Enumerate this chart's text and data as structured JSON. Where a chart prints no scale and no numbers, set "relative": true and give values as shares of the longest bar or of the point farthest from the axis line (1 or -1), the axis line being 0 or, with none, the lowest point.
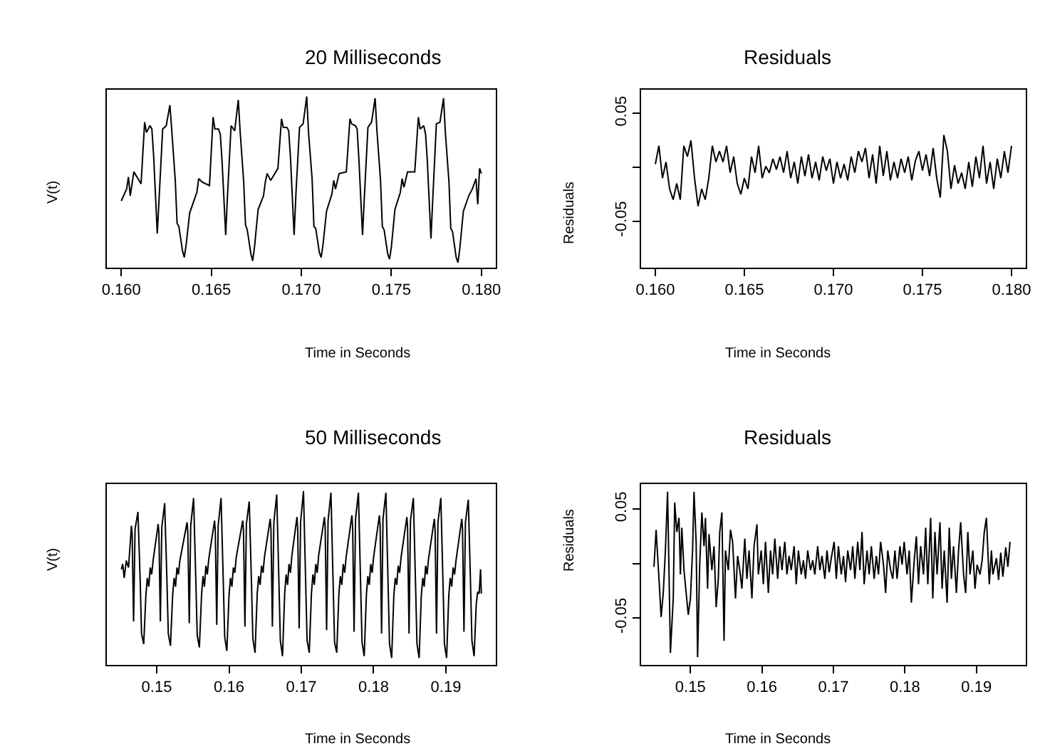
{
  "chart_data": [
    {
      "type": "line",
      "title": "20 Milliseconds",
      "xlabel": "Time in Seconds",
      "ylabel": "V(t)",
      "relative": true,
      "tick_labels": "x",
      "color": "#000000",
      "xlim": [
        0.1592,
        0.1808
      ],
      "xticks": [
        {
          "value": 0.16,
          "label": "0.160"
        },
        {
          "value": 0.165,
          "label": "0.165"
        },
        {
          "value": 0.17,
          "label": "0.170"
        },
        {
          "value": 0.175,
          "label": "0.175"
        },
        {
          "value": 0.18,
          "label": "0.180"
        }
      ],
      "x": [
        0.16,
        0.1603,
        0.1604,
        0.1605,
        0.1607,
        0.1611,
        0.1613,
        0.1614,
        0.1616,
        0.1617,
        0.1618,
        0.162,
        0.1621,
        0.1623,
        0.1625,
        0.1627,
        0.1628,
        0.163,
        0.1631,
        0.1632,
        0.1634,
        0.1635,
        0.1636,
        0.1638,
        0.1641,
        0.1642,
        0.1643,
        0.1645,
        0.1649,
        0.1651,
        0.1652,
        0.1654,
        0.1655,
        0.1656,
        0.1658,
        0.1659,
        0.1661,
        0.1663,
        0.1665,
        0.1666,
        0.1668,
        0.1669,
        0.167,
        0.1672,
        0.1673,
        0.1674,
        0.1676,
        0.1679,
        0.168,
        0.1681,
        0.1683,
        0.1687,
        0.1689,
        0.169,
        0.1692,
        0.1693,
        0.1694,
        0.1696,
        0.1697,
        0.1699,
        0.1701,
        0.1703,
        0.1704,
        0.1706,
        0.1707,
        0.1708,
        0.171,
        0.1711,
        0.1712,
        0.1714,
        0.1717,
        0.1718,
        0.1719,
        0.1721,
        0.1725,
        0.1727,
        0.1728,
        0.173,
        0.1731,
        0.1732,
        0.1734,
        0.1735,
        0.1737,
        0.1739,
        0.1741,
        0.1742,
        0.1744,
        0.1745,
        0.1746,
        0.1748,
        0.1749,
        0.175,
        0.1752,
        0.1755,
        0.1756,
        0.1757,
        0.1759,
        0.1763,
        0.1765,
        0.1766,
        0.1768,
        0.1769,
        0.177,
        0.1772,
        0.1773,
        0.1775,
        0.1777,
        0.1779,
        0.178,
        0.1782,
        0.1783,
        0.1784,
        0.1786,
        0.1787,
        0.1788,
        0.179,
        0.1793,
        0.1795,
        0.1797,
        0.1798,
        0.1799,
        0.18
      ],
      "values": [
        0.39,
        0.46,
        0.53,
        0.42,
        0.56,
        0.49,
        0.85,
        0.79,
        0.83,
        0.81,
        0.65,
        0.2,
        0.4,
        0.81,
        0.83,
        0.95,
        0.81,
        0.51,
        0.26,
        0.24,
        0.1,
        0.06,
        0.13,
        0.32,
        0.41,
        0.44,
        0.52,
        0.5,
        0.48,
        0.88,
        0.81,
        0.81,
        0.78,
        0.62,
        0.19,
        0.42,
        0.83,
        0.8,
        0.98,
        0.8,
        0.5,
        0.25,
        0.22,
        0.08,
        0.04,
        0.12,
        0.34,
        0.42,
        0.5,
        0.55,
        0.51,
        0.58,
        0.87,
        0.82,
        0.82,
        0.8,
        0.64,
        0.19,
        0.43,
        0.82,
        0.84,
        1.0,
        0.79,
        0.52,
        0.24,
        0.23,
        0.09,
        0.06,
        0.13,
        0.33,
        0.43,
        0.51,
        0.46,
        0.55,
        0.56,
        0.87,
        0.84,
        0.83,
        0.81,
        0.63,
        0.19,
        0.41,
        0.82,
        0.85,
        0.99,
        0.8,
        0.51,
        0.24,
        0.22,
        0.08,
        0.05,
        0.12,
        0.34,
        0.44,
        0.52,
        0.47,
        0.56,
        0.56,
        0.88,
        0.81,
        0.83,
        0.78,
        0.62,
        0.17,
        0.4,
        0.84,
        0.85,
        0.99,
        0.79,
        0.5,
        0.23,
        0.21,
        0.06,
        0.03,
        0.11,
        0.33,
        0.42,
        0.46,
        0.52,
        0.37,
        0.58,
        0.55
      ]
    },
    {
      "type": "line",
      "title": "Residuals",
      "xlabel": "Time in Seconds",
      "ylabel": "Residuals",
      "color": "#000000",
      "xlim": [
        0.1592,
        0.1808
      ],
      "xticks": [
        {
          "value": 0.16,
          "label": "0.160"
        },
        {
          "value": 0.165,
          "label": "0.165"
        },
        {
          "value": 0.17,
          "label": "0.170"
        },
        {
          "value": 0.175,
          "label": "0.175"
        },
        {
          "value": 0.18,
          "label": "0.180"
        }
      ],
      "ylim": [
        -0.093,
        0.072
      ],
      "yticks": [
        {
          "value": -0.05,
          "label": "-0.05"
        },
        {
          "value": 0,
          "label": null
        },
        {
          "value": 0.05,
          "label": "0.05"
        }
      ],
      "x": [
        0.16,
        0.1602,
        0.1604,
        0.1606,
        0.1608,
        0.161,
        0.1612,
        0.1614,
        0.1616,
        0.1618,
        0.162,
        0.1622,
        0.1624,
        0.1626,
        0.1628,
        0.163,
        0.1632,
        0.1634,
        0.1636,
        0.1638,
        0.164,
        0.1642,
        0.1644,
        0.1646,
        0.1648,
        0.165,
        0.1652,
        0.1654,
        0.1656,
        0.1658,
        0.166,
        0.1662,
        0.1664,
        0.1666,
        0.1668,
        0.167,
        0.1672,
        0.1674,
        0.1676,
        0.1678,
        0.168,
        0.1682,
        0.1684,
        0.1686,
        0.1688,
        0.169,
        0.1692,
        0.1694,
        0.1696,
        0.1698,
        0.17,
        0.1702,
        0.1704,
        0.1706,
        0.1708,
        0.171,
        0.1712,
        0.1714,
        0.1716,
        0.1718,
        0.172,
        0.1722,
        0.1724,
        0.1726,
        0.1728,
        0.173,
        0.1732,
        0.1734,
        0.1736,
        0.1738,
        0.174,
        0.1742,
        0.1744,
        0.1746,
        0.1748,
        0.175,
        0.1752,
        0.1754,
        0.1756,
        0.1758,
        0.176,
        0.1762,
        0.1764,
        0.1766,
        0.1768,
        0.177,
        0.1772,
        0.1774,
        0.1776,
        0.1778,
        0.178,
        0.1782,
        0.1784,
        0.1786,
        0.1788,
        0.179,
        0.1792,
        0.1794,
        0.1796,
        0.1798,
        0.18
      ],
      "values": [
        0.003,
        0.02,
        -0.01,
        0.005,
        -0.02,
        -0.03,
        -0.015,
        -0.03,
        0.02,
        0.01,
        0.025,
        -0.01,
        -0.036,
        -0.02,
        -0.03,
        -0.01,
        0.02,
        0.005,
        0.015,
        0.005,
        0.02,
        -0.005,
        0.01,
        -0.015,
        -0.025,
        -0.01,
        -0.02,
        0.01,
        -0.005,
        0.02,
        -0.01,
        0.001,
        -0.005,
        0.008,
        -0.002,
        0.01,
        -0.005,
        0.015,
        -0.01,
        0.005,
        -0.015,
        0.01,
        -0.008,
        0.012,
        -0.01,
        0.005,
        -0.012,
        0.01,
        -0.003,
        0.008,
        -0.015,
        0.005,
        -0.01,
        0.003,
        -0.012,
        0.01,
        -0.005,
        0.015,
        0.005,
        0.018,
        -0.01,
        0.012,
        -0.015,
        0.02,
        -0.008,
        0.015,
        -0.012,
        0.005,
        -0.01,
        0.008,
        -0.005,
        0.01,
        -0.012,
        0.006,
        0.015,
        -0.003,
        0.012,
        -0.008,
        0.018,
        -0.01,
        -0.028,
        0.03,
        0.015,
        -0.02,
        0.002,
        -0.015,
        -0.005,
        -0.02,
        0.005,
        -0.018,
        0.01,
        -0.01,
        0.02,
        -0.015,
        0.005,
        -0.02,
        0.008,
        -0.01,
        0.015,
        -0.005,
        0.02
      ]
    },
    {
      "type": "line",
      "title": "50 Milliseconds",
      "xlabel": "Time in Seconds",
      "ylabel": "V(t)",
      "relative": true,
      "tick_labels": "x",
      "color": "#000000",
      "xlim": [
        0.1431,
        0.1969
      ],
      "xticks": [
        0.15,
        0.16,
        0.17,
        0.18,
        0.19
      ],
      "x": [
        0.1451,
        0.1453,
        0.1455,
        0.1458,
        0.1461,
        0.1465,
        0.1466,
        0.1468,
        0.147,
        0.1474,
        0.1477,
        0.1479,
        0.1482,
        0.1485,
        0.1487,
        0.1489,
        0.1491,
        0.1493,
        0.1495,
        0.1502,
        0.1503,
        0.1505,
        0.1507,
        0.1511,
        0.1514,
        0.1516,
        0.1519,
        0.1522,
        0.1524,
        0.1526,
        0.1528,
        0.153,
        0.1532,
        0.1542,
        0.1543,
        0.1545,
        0.1547,
        0.1551,
        0.1554,
        0.1556,
        0.1559,
        0.1562,
        0.1564,
        0.1566,
        0.1568,
        0.157,
        0.1572,
        0.158,
        0.1581,
        0.1583,
        0.1585,
        0.1589,
        0.1592,
        0.1594,
        0.1597,
        0.16,
        0.1602,
        0.1604,
        0.1606,
        0.1608,
        0.161,
        0.1619,
        0.162,
        0.1622,
        0.1624,
        0.1628,
        0.1631,
        0.1633,
        0.1636,
        0.1639,
        0.1641,
        0.1643,
        0.1645,
        0.1647,
        0.1649,
        0.1657,
        0.1658,
        0.166,
        0.1662,
        0.1666,
        0.1669,
        0.1671,
        0.1674,
        0.1677,
        0.1679,
        0.1681,
        0.1683,
        0.1685,
        0.1687,
        0.1694,
        0.1695,
        0.1697,
        0.1699,
        0.1703,
        0.1706,
        0.1708,
        0.1711,
        0.1714,
        0.1716,
        0.1718,
        0.172,
        0.1722,
        0.1724,
        0.1732,
        0.1733,
        0.1735,
        0.1737,
        0.1741,
        0.1744,
        0.1746,
        0.1749,
        0.1752,
        0.1754,
        0.1756,
        0.1758,
        0.176,
        0.1762,
        0.177,
        0.1771,
        0.1773,
        0.1775,
        0.1779,
        0.1782,
        0.1784,
        0.1787,
        0.179,
        0.1792,
        0.1794,
        0.1796,
        0.1798,
        0.18,
        0.1808,
        0.1809,
        0.1811,
        0.1813,
        0.1817,
        0.182,
        0.1822,
        0.1825,
        0.1828,
        0.183,
        0.1832,
        0.1834,
        0.1836,
        0.1838,
        0.1846,
        0.1847,
        0.1849,
        0.1851,
        0.1855,
        0.1858,
        0.186,
        0.1863,
        0.1866,
        0.1868,
        0.187,
        0.1872,
        0.1874,
        0.1876,
        0.1884,
        0.1885,
        0.1887,
        0.1889,
        0.1893,
        0.1896,
        0.1898,
        0.1901,
        0.1904,
        0.1906,
        0.1908,
        0.191,
        0.1912,
        0.1914,
        0.1922,
        0.1923,
        0.1925,
        0.1927,
        0.1931,
        0.1934,
        0.1936,
        0.1939,
        0.1942,
        0.1944,
        0.1946,
        0.1948,
        0.1949
      ],
      "values": [
        0.55,
        0.58,
        0.5,
        0.6,
        0.56,
        0.8,
        0.75,
        0.25,
        0.78,
        0.88,
        0.5,
        0.18,
        0.12,
        0.4,
        0.5,
        0.45,
        0.56,
        0.52,
        0.6,
        0.81,
        0.76,
        0.25,
        0.79,
        0.93,
        0.5,
        0.18,
        0.11,
        0.4,
        0.5,
        0.45,
        0.56,
        0.52,
        0.6,
        0.82,
        0.76,
        0.24,
        0.8,
        0.96,
        0.5,
        0.17,
        0.1,
        0.4,
        0.51,
        0.45,
        0.57,
        0.52,
        0.61,
        0.83,
        0.77,
        0.23,
        0.8,
        0.96,
        0.49,
        0.16,
        0.08,
        0.4,
        0.5,
        0.45,
        0.56,
        0.53,
        0.62,
        0.83,
        0.77,
        0.22,
        0.81,
        0.94,
        0.48,
        0.15,
        0.07,
        0.41,
        0.51,
        0.46,
        0.57,
        0.53,
        0.62,
        0.84,
        0.78,
        0.22,
        0.82,
        0.98,
        0.48,
        0.14,
        0.05,
        0.41,
        0.52,
        0.46,
        0.58,
        0.53,
        0.63,
        0.85,
        0.78,
        0.21,
        0.82,
        1.0,
        0.48,
        0.14,
        0.07,
        0.41,
        0.52,
        0.46,
        0.58,
        0.53,
        0.63,
        0.85,
        0.79,
        0.2,
        0.83,
        0.99,
        0.47,
        0.13,
        0.07,
        0.41,
        0.51,
        0.46,
        0.58,
        0.53,
        0.62,
        0.86,
        0.79,
        0.19,
        0.84,
        0.99,
        0.47,
        0.13,
        0.05,
        0.4,
        0.51,
        0.46,
        0.58,
        0.53,
        0.62,
        0.86,
        0.8,
        0.18,
        0.84,
        0.99,
        0.47,
        0.12,
        0.04,
        0.4,
        0.5,
        0.46,
        0.57,
        0.53,
        0.62,
        0.85,
        0.79,
        0.18,
        0.83,
        0.96,
        0.47,
        0.12,
        0.04,
        0.4,
        0.5,
        0.45,
        0.57,
        0.52,
        0.61,
        0.84,
        0.78,
        0.18,
        0.82,
        0.96,
        0.47,
        0.12,
        0.04,
        0.4,
        0.5,
        0.45,
        0.56,
        0.52,
        0.6,
        0.84,
        0.78,
        0.19,
        0.82,
        0.95,
        0.48,
        0.14,
        0.05,
        0.35,
        0.42,
        0.41,
        0.55,
        0.41
      ]
    },
    {
      "type": "line",
      "title": "Residuals",
      "xlabel": "Time in Seconds",
      "ylabel": "Residuals",
      "color": "#000000",
      "xlim": [
        0.1431,
        0.1969
      ],
      "xticks": [
        0.15,
        0.16,
        0.17,
        0.18,
        0.19
      ],
      "ylim": [
        -0.093,
        0.073
      ],
      "yticks": [
        {
          "value": -0.05,
          "label": "-0.05"
        },
        {
          "value": 0,
          "label": null
        },
        {
          "value": 0.05,
          "label": "0.05"
        }
      ],
      "x": [
        0.1449,
        0.1452,
        0.1456,
        0.1459,
        0.1462,
        0.1465,
        0.1468,
        0.147,
        0.1472,
        0.1476,
        0.1478,
        0.1481,
        0.1484,
        0.1486,
        0.1488,
        0.1491,
        0.1494,
        0.1497,
        0.15,
        0.1503,
        0.1505,
        0.1508,
        0.151,
        0.1513,
        0.1516,
        0.1519,
        0.1521,
        0.1524,
        0.1526,
        0.153,
        0.1533,
        0.1536,
        0.1539,
        0.1541,
        0.1544,
        0.1547,
        0.1549,
        0.1553,
        0.1556,
        0.1559,
        0.1563,
        0.1566,
        0.1569,
        0.1572,
        0.1576,
        0.1579,
        0.1582,
        0.1586,
        0.1589,
        0.1593,
        0.1595,
        0.1599,
        0.1602,
        0.1605,
        0.1609,
        0.1612,
        0.1615,
        0.1618,
        0.1622,
        0.1625,
        0.1628,
        0.1632,
        0.1635,
        0.1638,
        0.1641,
        0.1645,
        0.1648,
        0.1651,
        0.1655,
        0.1658,
        0.1661,
        0.1664,
        0.1668,
        0.1671,
        0.1674,
        0.1678,
        0.1681,
        0.1684,
        0.1688,
        0.1691,
        0.1694,
        0.1697,
        0.1701,
        0.1704,
        0.1707,
        0.1711,
        0.1714,
        0.1717,
        0.172,
        0.1724,
        0.1727,
        0.173,
        0.1734,
        0.1737,
        0.174,
        0.1743,
        0.1747,
        0.175,
        0.1753,
        0.1757,
        0.176,
        0.1763,
        0.1766,
        0.177,
        0.1773,
        0.1776,
        0.178,
        0.1783,
        0.1786,
        0.1789,
        0.1793,
        0.1796,
        0.1799,
        0.1803,
        0.1806,
        0.1809,
        0.1813,
        0.1816,
        0.1819,
        0.1822,
        0.1826,
        0.1829,
        0.1832,
        0.1836,
        0.1839,
        0.1842,
        0.1845,
        0.1849,
        0.1852,
        0.1855,
        0.1859,
        0.1862,
        0.1865,
        0.1868,
        0.1872,
        0.1875,
        0.1878,
        0.1882,
        0.1885,
        0.1888,
        0.1891,
        0.1895,
        0.1898,
        0.1901,
        0.1905,
        0.1908,
        0.1911,
        0.1914,
        0.1918,
        0.1921,
        0.1923,
        0.1928,
        0.1931,
        0.1934,
        0.1937,
        0.1941,
        0.1944,
        0.1947
      ],
      "values": [
        -0.003,
        0.031,
        -0.014,
        -0.049,
        -0.027,
        0.012,
        0.066,
        -0.006,
        -0.082,
        -0.032,
        0.056,
        0.029,
        0.042,
        -0.01,
        0.033,
        -0.006,
        -0.027,
        -0.047,
        -0.032,
        0.012,
        0.066,
        0.02,
        -0.086,
        -0.001,
        0.047,
        0.016,
        0.042,
        -0.023,
        0.027,
        -0.006,
        0.016,
        -0.04,
        -0.014,
        0.029,
        0.047,
        -0.071,
        0.012,
        -0.006,
        0.031,
        0.02,
        -0.032,
        0.007,
        -0.006,
        -0.023,
        0.023,
        -0.014,
        0.012,
        -0.032,
        0.016,
        0.036,
        -0.01,
        0.012,
        -0.019,
        0.02,
        -0.027,
        0.012,
        -0.01,
        0.023,
        -0.014,
        0.016,
        -0.006,
        0.02,
        -0.01,
        0.007,
        -0.006,
        0.016,
        -0.019,
        0.012,
        -0.01,
        0.003,
        -0.014,
        0.012,
        -0.006,
        0.003,
        -0.01,
        0.016,
        -0.006,
        0.007,
        -0.014,
        0.012,
        -0.008,
        0.005,
        0.02,
        -0.014,
        0.016,
        -0.01,
        0.007,
        -0.017,
        0.012,
        -0.006,
        0.016,
        -0.014,
        0.02,
        -0.006,
        0.029,
        -0.019,
        0.012,
        -0.01,
        0.016,
        -0.014,
        0.007,
        -0.01,
        0.02,
        -0.001,
        -0.027,
        0.012,
        -0.006,
        -0.014,
        0.012,
        -0.014,
        0.016,
        -0.001,
        0.02,
        -0.01,
        0.012,
        -0.036,
        0.003,
        0.025,
        -0.019,
        0.016,
        -0.01,
        0.033,
        -0.019,
        0.042,
        -0.032,
        0.029,
        -0.01,
        0.038,
        -0.023,
        0.012,
        -0.036,
        0.033,
        -0.014,
        0.016,
        -0.027,
        0.012,
        0.038,
        -0.01,
        -0.027,
        0.029,
        -0.01,
        0.012,
        -0.023,
        -0.001,
        -0.01,
        0.003,
        0.029,
        0.042,
        -0.019,
        0.012,
        -0.01,
        0.005,
        -0.015,
        0.01,
        -0.012,
        0.015,
        -0.003,
        0.02
      ]
    }
  ]
}
